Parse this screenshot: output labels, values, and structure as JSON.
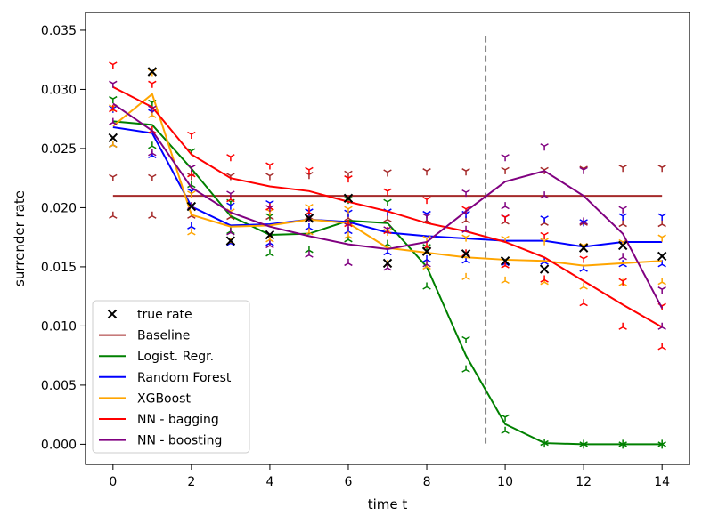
{
  "chart_data": {
    "type": "line",
    "title": "",
    "xlabel": "time t",
    "ylabel": "surrender rate",
    "xlim": [
      -0.7,
      14.7
    ],
    "ylim": [
      -0.0017,
      0.0365
    ],
    "xticks": [
      0,
      2,
      4,
      6,
      8,
      10,
      12,
      14
    ],
    "xtick_labels": [
      "0",
      "2",
      "4",
      "6",
      "8",
      "10",
      "12",
      "14"
    ],
    "yticks": [
      0.0,
      0.005,
      0.01,
      0.015,
      0.02,
      0.025,
      0.03,
      0.035
    ],
    "ytick_labels": [
      "0.000",
      "0.005",
      "0.010",
      "0.015",
      "0.020",
      "0.025",
      "0.030",
      "0.035"
    ],
    "vline": {
      "x": 9.5,
      "color": "#808080",
      "style": "dashed"
    },
    "legend_position": "lower-left",
    "x": [
      0,
      1,
      2,
      3,
      4,
      5,
      6,
      7,
      8,
      9,
      10,
      11,
      12,
      13,
      14
    ],
    "true_rate": {
      "name": "true rate",
      "color": "#000000",
      "values": [
        0.0259,
        0.0315,
        0.0201,
        0.0172,
        0.0177,
        0.0191,
        0.0208,
        0.0153,
        0.0163,
        0.0161,
        0.0155,
        0.0148,
        0.0166,
        0.0168,
        0.0159
      ]
    },
    "series": [
      {
        "name": "Baseline",
        "color": "#a52a2a",
        "values": [
          0.021,
          0.021,
          0.021,
          0.021,
          0.021,
          0.021,
          0.021,
          0.021,
          0.021,
          0.021,
          0.021,
          0.021,
          0.021,
          0.021,
          0.021
        ],
        "upper": [
          0.0226,
          0.0226,
          0.0227,
          0.0227,
          0.0227,
          0.0228,
          0.0229,
          0.023,
          0.0231,
          0.0231,
          0.0232,
          0.0232,
          0.0233,
          0.0234,
          0.0234
        ],
        "lower": [
          0.0193,
          0.0193,
          0.0193,
          0.0192,
          0.0192,
          0.0192,
          0.0191,
          0.019,
          0.0189,
          0.0189,
          0.0188,
          0.0187,
          0.0187,
          0.0186,
          0.0186
        ]
      },
      {
        "name": "Logist. Regr.",
        "color": "#008000",
        "values": [
          0.0273,
          0.027,
          0.0233,
          0.0193,
          0.0177,
          0.0178,
          0.0189,
          0.0187,
          0.015,
          0.0075,
          0.0017,
          0.0001,
          0.0,
          0.0,
          0.0
        ],
        "upper": [
          0.0292,
          0.0289,
          0.0248,
          0.0205,
          0.0193,
          0.0192,
          0.0207,
          0.0205,
          0.0167,
          0.0089,
          0.0023,
          0.0001,
          0.0,
          0.0,
          0.0
        ],
        "lower": [
          0.0253,
          0.0252,
          0.0219,
          0.018,
          0.0161,
          0.0164,
          0.0173,
          0.0169,
          0.0133,
          0.0063,
          0.0011,
          0.0001,
          0.0,
          0.0,
          0.0
        ]
      },
      {
        "name": "Random Forest",
        "color": "#0000ff",
        "values": [
          0.0268,
          0.0263,
          0.0201,
          0.0185,
          0.0186,
          0.019,
          0.0188,
          0.0179,
          0.0176,
          0.0174,
          0.0172,
          0.0172,
          0.0167,
          0.0171,
          0.0171
        ],
        "upper": [
          0.0284,
          0.0281,
          0.0214,
          0.0202,
          0.0204,
          0.0197,
          0.0196,
          0.0197,
          0.0195,
          0.0195,
          0.0192,
          0.0191,
          0.0188,
          0.0193,
          0.0193
        ],
        "lower": [
          0.0253,
          0.0244,
          0.0184,
          0.017,
          0.017,
          0.0183,
          0.018,
          0.0162,
          0.0156,
          0.0155,
          0.0153,
          0.0154,
          0.0148,
          0.0152,
          0.0152
        ]
      },
      {
        "name": "XGBoost",
        "color": "#ffa500",
        "values": [
          0.0269,
          0.0296,
          0.0194,
          0.0184,
          0.0185,
          0.019,
          0.0187,
          0.0166,
          0.0162,
          0.0158,
          0.0156,
          0.0155,
          0.0151,
          0.0153,
          0.0155
        ],
        "upper": [
          0.0285,
          0.0315,
          0.0212,
          0.0197,
          0.0197,
          0.0201,
          0.0199,
          0.018,
          0.0174,
          0.0175,
          0.0174,
          0.0172,
          0.0168,
          0.0171,
          0.0175
        ],
        "lower": [
          0.0253,
          0.0278,
          0.0179,
          0.0171,
          0.0173,
          0.0179,
          0.0176,
          0.0152,
          0.015,
          0.0141,
          0.0138,
          0.0137,
          0.0133,
          0.0136,
          0.0137
        ]
      },
      {
        "name": "NN - bagging",
        "color": "#ff0000",
        "values": [
          0.0302,
          0.0285,
          0.0245,
          0.0225,
          0.0218,
          0.0214,
          0.0205,
          0.0197,
          0.0187,
          0.018,
          0.0171,
          0.0158,
          0.0138,
          0.0118,
          0.0099
        ],
        "upper": [
          0.0321,
          0.0305,
          0.0262,
          0.0243,
          0.0236,
          0.0232,
          0.0225,
          0.0214,
          0.0207,
          0.0199,
          0.0192,
          0.0177,
          0.0157,
          0.0138,
          0.0117
        ],
        "lower": [
          0.0283,
          0.0265,
          0.0228,
          0.0207,
          0.02,
          0.0196,
          0.0186,
          0.018,
          0.0167,
          0.0161,
          0.0151,
          0.0139,
          0.0119,
          0.0099,
          0.0082
        ]
      },
      {
        "name": "NN - boosting",
        "color": "#800080",
        "values": [
          0.0288,
          0.0265,
          0.0217,
          0.0196,
          0.0184,
          0.0176,
          0.0169,
          0.0165,
          0.0171,
          0.0197,
          0.0222,
          0.0231,
          0.021,
          0.0178,
          0.0115
        ],
        "upper": [
          0.0305,
          0.0284,
          0.0234,
          0.0212,
          0.02,
          0.0192,
          0.0185,
          0.0182,
          0.0193,
          0.0213,
          0.0243,
          0.0252,
          0.0232,
          0.0199,
          0.0131
        ],
        "lower": [
          0.0272,
          0.0246,
          0.0201,
          0.0179,
          0.0168,
          0.016,
          0.0153,
          0.0149,
          0.0152,
          0.0181,
          0.0201,
          0.021,
          0.0188,
          0.0158,
          0.0099
        ]
      }
    ]
  }
}
